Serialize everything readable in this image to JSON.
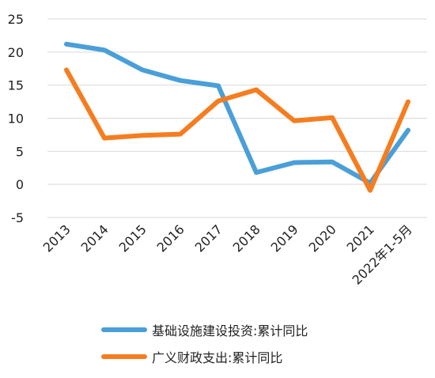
{
  "chart_data": {
    "type": "line",
    "categories": [
      "2013",
      "2014",
      "2015",
      "2016",
      "2017",
      "2018",
      "2019",
      "2020",
      "2021",
      "2022年1-5月"
    ],
    "ylim": [
      -5,
      25
    ],
    "yticks": [
      -5,
      0,
      5,
      10,
      15,
      20,
      25
    ],
    "grid": "horizontal",
    "legend_position": "bottom",
    "series": [
      {
        "name": "基础设施建设投资:累计同比",
        "color": "#4a9fd8",
        "values": [
          21.2,
          20.3,
          17.3,
          15.7,
          14.9,
          1.8,
          3.3,
          3.4,
          0.2,
          8.2
        ]
      },
      {
        "name": "广义财政支出:累计同比",
        "color": "#f57d20",
        "values": [
          17.3,
          7.0,
          7.4,
          7.6,
          12.6,
          14.3,
          9.6,
          10.1,
          -0.9,
          12.5
        ]
      }
    ]
  }
}
